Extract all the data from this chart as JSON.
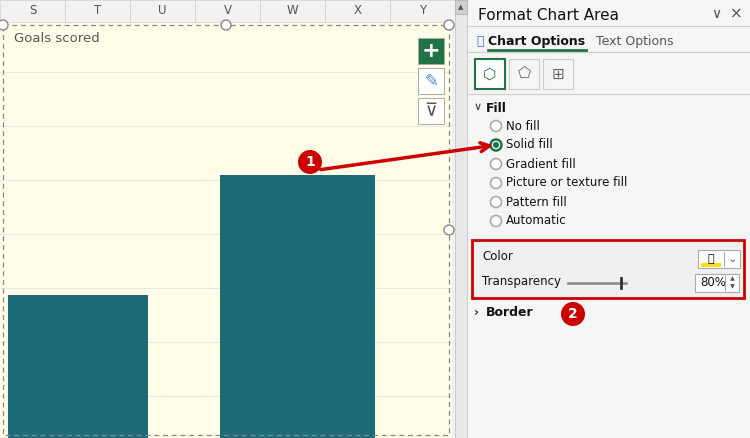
{
  "fig_width": 7.5,
  "fig_height": 4.38,
  "dpi": 100,
  "bg_color": "#f0f0f0",
  "left_panel": {
    "bg_color": "#fffde7",
    "chart_title": "Goals scored",
    "title_color": "#555555",
    "title_fontsize": 9.5,
    "bar_color": "#1c6b78",
    "gridline_color": "#e8e8e8",
    "excel_header_bg": "#f2f2f2",
    "excel_header_text": [
      "S",
      "T",
      "U",
      "V",
      "W",
      "X",
      "Y"
    ],
    "header_text_color": "#555555",
    "header_fontsize": 8.5
  },
  "right_panel": {
    "bg_color": "#f5f5f5",
    "title": "Format Chart Area",
    "title_fontsize": 11,
    "tab1": "Chart Options",
    "tab2": "Text Options",
    "tab_active_color": "#217346",
    "fill_options": [
      "No fill",
      "Solid fill",
      "Gradient fill",
      "Picture or texture fill",
      "Pattern fill",
      "Automatic"
    ],
    "selected_fill": 1,
    "radio_selected": "#217346",
    "color_label": "Color",
    "transparency_label": "Transparency",
    "transparency_value": "80%",
    "highlight_box_color": "#cc0000",
    "border_section": "Border"
  }
}
